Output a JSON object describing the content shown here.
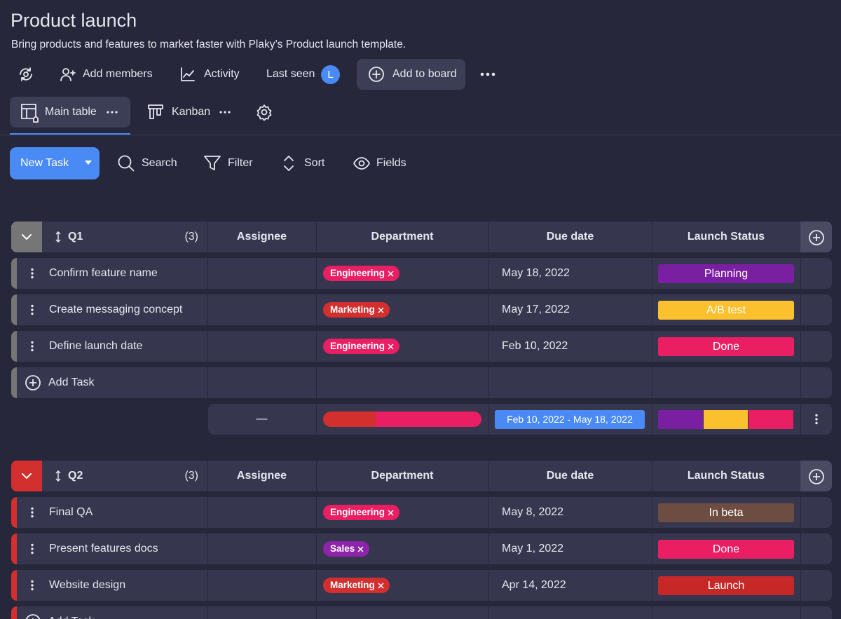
{
  "header": {
    "title": "Product launch",
    "subtitle": "Bring products and features to market faster with Plaky’s Product launch template.",
    "toolbar": {
      "add_members": "Add members",
      "activity": "Activity",
      "last_seen": "Last seen",
      "avatar": "L",
      "add_to_board": "Add to board"
    }
  },
  "views": [
    "Main table",
    "Kanban"
  ],
  "actions": {
    "new_task": "New Task",
    "search": "Search",
    "filter": "Filter",
    "sort": "Sort",
    "fields": "Fields"
  },
  "columns": [
    "Assignee",
    "Department",
    "Due date",
    "Launch Status"
  ],
  "groups": [
    {
      "name": "Q1",
      "count": "(3)",
      "color": "#767676",
      "rows": [
        {
          "task": "Confirm feature name",
          "department": {
            "label": "Engineering",
            "color": "#e91e63"
          },
          "due": "May 18, 2022",
          "status": {
            "label": "Planning",
            "color": "#7b1fa2"
          }
        },
        {
          "task": "Create messaging concept",
          "department": {
            "label": "Marketing",
            "color": "#d32f2f"
          },
          "due": "May 17, 2022",
          "status": {
            "label": "A/B test",
            "color": "#fbc02d"
          }
        },
        {
          "task": "Define launch date",
          "department": {
            "label": "Engineering",
            "color": "#e91e63"
          },
          "due": "Feb 10, 2022",
          "status": {
            "label": "Done",
            "color": "#e91e63"
          }
        }
      ],
      "add_task": "Add Task",
      "summary": {
        "assignee": "—",
        "date_range": "Feb 10, 2022 - May 18, 2022"
      }
    },
    {
      "name": "Q2",
      "count": "(3)",
      "color": "#d32f2f",
      "rows": [
        {
          "task": "Final QA",
          "department": {
            "label": "Engineering",
            "color": "#e91e63"
          },
          "due": "May 8, 2022",
          "status": {
            "label": "In beta",
            "color": "#6d4c41"
          }
        },
        {
          "task": "Present features docs",
          "department": {
            "label": "Sales",
            "color": "#8e24aa"
          },
          "due": "May 1, 2022",
          "status": {
            "label": "Done",
            "color": "#e91e63"
          }
        },
        {
          "task": "Website design",
          "department": {
            "label": "Marketing",
            "color": "#d32f2f"
          },
          "due": "Apr 14, 2022",
          "status": {
            "label": "Launch",
            "color": "#c62828"
          }
        }
      ],
      "add_task": "Add Task"
    }
  ]
}
